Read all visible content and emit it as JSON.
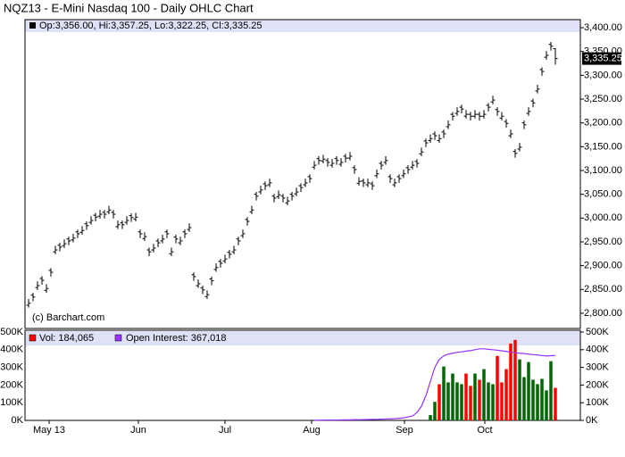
{
  "chart_data": {
    "type": "ohlc",
    "title": "NQZ13 - E-Mini Nasdaq 100 - Daily OHLC Chart",
    "legend_text": "Op:3,356.00, Hi:3,357.25, Lo:3,322.25, Cl:3,335.25",
    "copyright": "(c) Barchart.com",
    "last_label": "3,335.25",
    "color": "#000000",
    "xlim": [
      -0.8,
      123.6
    ],
    "xticks": [
      {
        "value": 4.6,
        "label": "May 13"
      },
      {
        "value": 24.6,
        "label": "Jun"
      },
      {
        "value": 44,
        "label": "Jul"
      },
      {
        "value": 63.4,
        "label": "Aug"
      },
      {
        "value": 84.2,
        "label": "Sep"
      },
      {
        "value": 102.2,
        "label": "Oct"
      }
    ],
    "ylim": [
      2768,
      3417
    ],
    "yticks": [
      {
        "value": 2800,
        "label": "2,800.00"
      },
      {
        "value": 2850,
        "label": "2,850.00"
      },
      {
        "value": 2900,
        "label": "2,900.00"
      },
      {
        "value": 2950,
        "label": "2,950.00"
      },
      {
        "value": 3000,
        "label": "3,000.00"
      },
      {
        "value": 3050,
        "label": "3,050.00"
      },
      {
        "value": 3100,
        "label": "3,100.00"
      },
      {
        "value": 3150,
        "label": "3,150.00"
      },
      {
        "value": 3200,
        "label": "3,200.00"
      },
      {
        "value": 3250,
        "label": "3,250.00"
      },
      {
        "value": 3300,
        "label": "3,300.00"
      },
      {
        "value": 3350,
        "label": "3,350.00"
      },
      {
        "value": 3400,
        "label": "3,400.00"
      }
    ],
    "open": [
      2817,
      2838,
      2854,
      2873,
      2848,
      2890,
      2929,
      2943,
      2942,
      2956,
      2954,
      2971,
      2970,
      2988,
      2991,
      3006,
      3004,
      3012,
      3013,
      3012,
      2982,
      2990,
      2991,
      3005,
      2998,
      2971,
      2957,
      2933,
      2933,
      2952,
      2952,
      2971,
      2925,
      2960,
      2948,
      2971,
      2976,
      2881,
      2858,
      2853,
      2835,
      2872,
      2892,
      2909,
      2910,
      2928,
      2929,
      2956,
      2963,
      2997,
      3013,
      3050,
      3055,
      3072,
      3070,
      3046,
      3045,
      3046,
      3032,
      3050,
      3051,
      3068,
      3070,
      3087,
      3107,
      3125,
      3120,
      3121,
      3111,
      3125,
      3113,
      3130,
      3126,
      3106,
      3073,
      3078,
      3070,
      3072,
      3089,
      3115,
      3117,
      3087,
      3070,
      3087,
      3089,
      3106,
      3107,
      3119,
      3135,
      3162,
      3163,
      3177,
      3163,
      3181,
      3192,
      3218,
      3220,
      3233,
      3214,
      3218,
      3214,
      3218,
      3214,
      3237,
      3244,
      3228,
      3210,
      3203,
      3173,
      3140,
      3145,
      3200,
      3220,
      3246,
      3267,
      3312,
      3338,
      3365,
      3356
    ],
    "high": [
      2830,
      2843,
      2867,
      2878,
      2861,
      2895,
      2942,
      2948,
      2955,
      2961,
      2967,
      2976,
      2983,
      2993,
      3004,
      3011,
      3017,
      3017,
      3026,
      3017,
      2995,
      2995,
      3004,
      3010,
      3011,
      2976,
      2970,
      2938,
      2946,
      2957,
      2965,
      2976,
      2938,
      2965,
      2961,
      2976,
      2989,
      2886,
      2871,
      2858,
      2848,
      2877,
      2905,
      2914,
      2923,
      2933,
      2942,
      2961,
      2976,
      3002,
      3026,
      3055,
      3068,
      3077,
      3083,
      3051,
      3058,
      3051,
      3045,
      3055,
      3064,
      3073,
      3083,
      3092,
      3120,
      3130,
      3133,
      3126,
      3124,
      3130,
      3126,
      3135,
      3139,
      3111,
      3086,
      3083,
      3083,
      3077,
      3102,
      3120,
      3130,
      3092,
      3083,
      3092,
      3102,
      3111,
      3120,
      3124,
      3148,
      3167,
      3176,
      3182,
      3176,
      3186,
      3205,
      3223,
      3233,
      3238,
      3227,
      3223,
      3227,
      3223,
      3227,
      3242,
      3257,
      3233,
      3223,
      3208,
      3186,
      3145,
      3158,
      3205,
      3233,
      3251,
      3280,
      3317,
      3351,
      3370,
      3357.25
    ],
    "low": [
      2812,
      2825,
      2849,
      2860,
      2843,
      2877,
      2924,
      2930,
      2937,
      2943,
      2949,
      2958,
      2965,
      2975,
      2986,
      2993,
      2999,
      2999,
      3008,
      2999,
      2977,
      2977,
      2986,
      2992,
      2993,
      2958,
      2952,
      2920,
      2928,
      2939,
      2947,
      2958,
      2920,
      2947,
      2943,
      2958,
      2971,
      2868,
      2853,
      2840,
      2830,
      2859,
      2887,
      2896,
      2905,
      2915,
      2924,
      2943,
      2958,
      2984,
      3008,
      3037,
      3050,
      3059,
      3065,
      3033,
      3040,
      3033,
      3027,
      3037,
      3046,
      3055,
      3065,
      3074,
      3102,
      3112,
      3115,
      3108,
      3106,
      3112,
      3108,
      3117,
      3121,
      3093,
      3068,
      3065,
      3065,
      3059,
      3084,
      3102,
      3112,
      3074,
      3065,
      3074,
      3084,
      3093,
      3102,
      3106,
      3130,
      3149,
      3158,
      3164,
      3158,
      3168,
      3187,
      3205,
      3215,
      3220,
      3209,
      3205,
      3209,
      3205,
      3209,
      3224,
      3239,
      3215,
      3205,
      3190,
      3168,
      3127,
      3140,
      3187,
      3215,
      3233,
      3262,
      3299,
      3333,
      3352,
      3322.25
    ],
    "close": [
      2821,
      2834,
      2858,
      2869,
      2852,
      2886,
      2933,
      2939,
      2946,
      2952,
      2958,
      2967,
      2974,
      2984,
      2995,
      3002,
      3008,
      3008,
      3017,
      3008,
      2986,
      2986,
      2995,
      3001,
      3002,
      2967,
      2961,
      2929,
      2937,
      2948,
      2956,
      2967,
      2929,
      2956,
      2952,
      2967,
      2980,
      2877,
      2862,
      2849,
      2839,
      2868,
      2896,
      2905,
      2914,
      2924,
      2933,
      2952,
      2967,
      2993,
      3017,
      3046,
      3059,
      3068,
      3074,
      3042,
      3049,
      3042,
      3036,
      3046,
      3055,
      3064,
      3074,
      3083,
      3111,
      3121,
      3124,
      3117,
      3115,
      3121,
      3117,
      3126,
      3130,
      3102,
      3077,
      3074,
      3074,
      3068,
      3093,
      3111,
      3121,
      3083,
      3074,
      3083,
      3093,
      3102,
      3111,
      3115,
      3139,
      3158,
      3167,
      3173,
      3167,
      3177,
      3196,
      3214,
      3224,
      3229,
      3218,
      3214,
      3218,
      3214,
      3218,
      3233,
      3248,
      3224,
      3214,
      3199,
      3177,
      3136,
      3149,
      3196,
      3224,
      3242,
      3271,
      3308,
      3342,
      3361,
      3335.25
    ],
    "volume_ylim": [
      0,
      505000
    ],
    "volume_yticks": [
      {
        "value": 0,
        "label": "0K"
      },
      {
        "value": 100000,
        "label": "100K"
      },
      {
        "value": 200000,
        "label": "200K"
      },
      {
        "value": 300000,
        "label": "300K"
      },
      {
        "value": 400000,
        "label": "400K"
      },
      {
        "value": 500000,
        "label": "500K"
      }
    ],
    "volume": {
      "name": "Vol: 184,065",
      "color": "#ff0000",
      "up_color": "#006600",
      "values": [
        null,
        null,
        null,
        null,
        null,
        null,
        null,
        null,
        null,
        null,
        null,
        null,
        null,
        null,
        null,
        null,
        null,
        null,
        null,
        null,
        null,
        null,
        null,
        null,
        null,
        null,
        null,
        null,
        null,
        null,
        null,
        null,
        null,
        null,
        null,
        null,
        null,
        null,
        null,
        null,
        null,
        null,
        null,
        null,
        null,
        null,
        null,
        null,
        null,
        null,
        null,
        null,
        null,
        null,
        null,
        null,
        null,
        null,
        null,
        null,
        null,
        null,
        null,
        null,
        null,
        null,
        null,
        null,
        null,
        null,
        null,
        null,
        null,
        null,
        null,
        null,
        null,
        null,
        null,
        null,
        null,
        null,
        null,
        null,
        null,
        null,
        null,
        null,
        null,
        null,
        30000,
        105000,
        205000,
        305000,
        215000,
        265000,
        215000,
        205000,
        265000,
        195000,
        265000,
        230000,
        290000,
        215000,
        205000,
        365000,
        215000,
        290000,
        435000,
        455000,
        345000,
        245000,
        330000,
        230000,
        205000,
        235000,
        170000,
        335000,
        184065
      ]
    },
    "open_interest": {
      "name": "Open Interest: 367,018",
      "color": "#9933ff",
      "values": [
        null,
        null,
        null,
        null,
        null,
        null,
        null,
        null,
        null,
        null,
        null,
        null,
        null,
        null,
        null,
        null,
        null,
        null,
        null,
        null,
        null,
        null,
        null,
        null,
        null,
        null,
        null,
        null,
        null,
        null,
        null,
        null,
        null,
        null,
        null,
        null,
        null,
        null,
        null,
        null,
        null,
        null,
        null,
        null,
        null,
        null,
        null,
        null,
        null,
        null,
        null,
        null,
        null,
        null,
        null,
        null,
        null,
        null,
        null,
        null,
        null,
        null,
        null,
        null,
        1000,
        1200,
        1500,
        1800,
        2000,
        2300,
        2600,
        3000,
        3300,
        3600,
        4000,
        4500,
        5000,
        5500,
        6000,
        7000,
        8000,
        9000,
        10000,
        12000,
        14000,
        20000,
        25000,
        45000,
        80000,
        140000,
        220000,
        300000,
        345000,
        365000,
        375000,
        380000,
        385000,
        388000,
        392000,
        395000,
        400000,
        405000,
        405000,
        402000,
        400000,
        397000,
        394000,
        390000,
        386000,
        383000,
        380000,
        378000,
        375000,
        372000,
        370000,
        367000,
        365000,
        366000,
        367018
      ]
    }
  }
}
